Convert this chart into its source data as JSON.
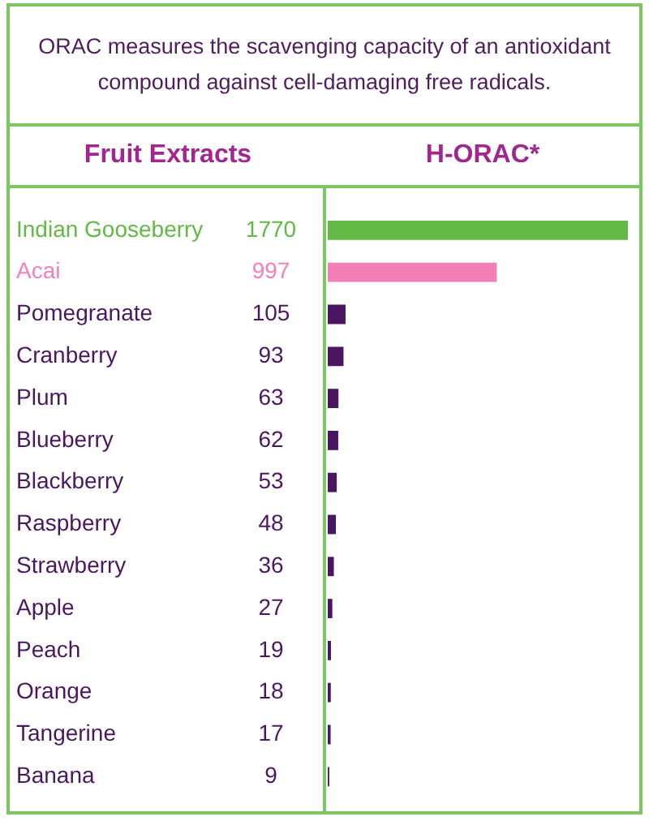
{
  "chart_data": {
    "type": "bar",
    "orientation": "horizontal",
    "title": "ORAC measures the scavenging capacity of an antioxidant compound against cell-damaging free radicals.",
    "ylabel": "Fruit Extracts",
    "xlabel": "H-ORAC*",
    "categories": [
      "Indian Gooseberry",
      "Acai",
      "Pomegranate",
      "Cranberry",
      "Plum",
      "Blueberry",
      "Blackberry",
      "Raspberry",
      "Strawberry",
      "Apple",
      "Peach",
      "Orange",
      "Tangerine",
      "Banana"
    ],
    "values": [
      1770,
      997,
      105,
      93,
      63,
      62,
      53,
      48,
      36,
      27,
      19,
      18,
      17,
      9
    ],
    "colors": [
      "#62b946",
      "#f27fb8",
      "#4b1660",
      "#4b1660",
      "#4b1660",
      "#4b1660",
      "#4b1660",
      "#4b1660",
      "#4b1660",
      "#4b1660",
      "#4b1660",
      "#4b1660",
      "#4b1660",
      "#4b1660"
    ],
    "data_labels": true,
    "tick_labels": "y"
  }
}
